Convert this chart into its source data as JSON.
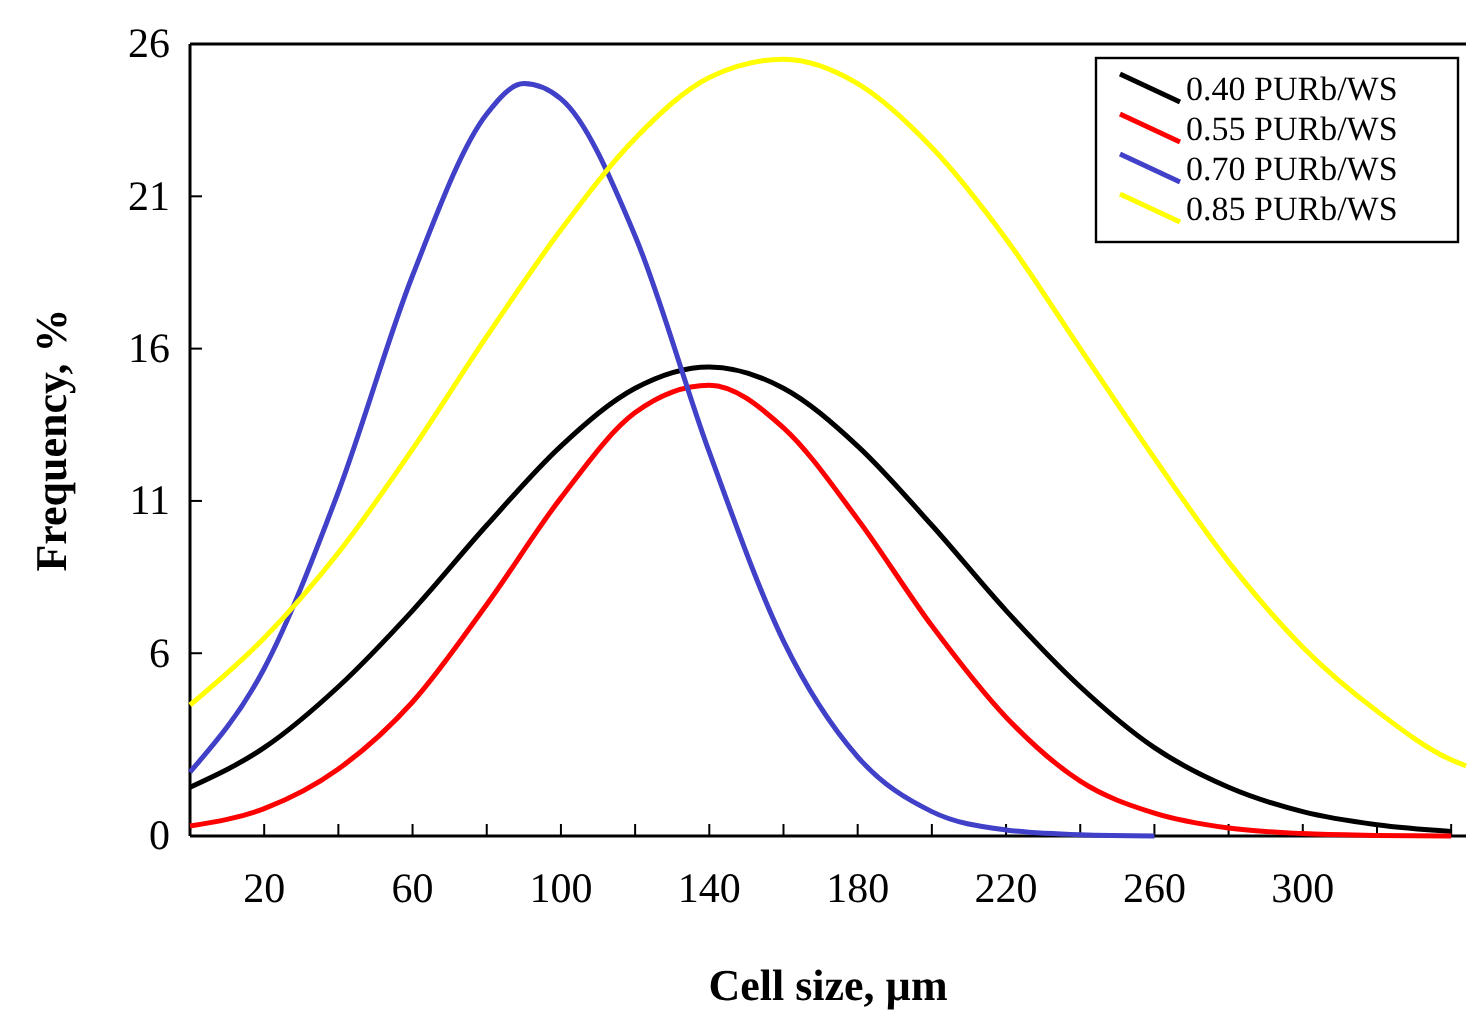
{
  "chart_data": {
    "type": "line",
    "xlabel": "Cell size, µm",
    "ylabel": "Frequency, %",
    "xlim": [
      0,
      344
    ],
    "ylim": [
      0,
      26
    ],
    "xticks": [
      {
        "value": 0,
        "label": null
      },
      20,
      {
        "value": 40,
        "label": null
      },
      60,
      {
        "value": 80,
        "label": null
      },
      100,
      {
        "value": 120,
        "label": null
      },
      140,
      {
        "value": 160,
        "label": null
      },
      180,
      {
        "value": 200,
        "label": null
      },
      220,
      {
        "value": 240,
        "label": null
      },
      260,
      {
        "value": 280,
        "label": null
      },
      300,
      {
        "value": 320,
        "label": null
      },
      {
        "value": 340,
        "label": null
      }
    ],
    "yticks": [
      0,
      6,
      11,
      16,
      21,
      26
    ],
    "grid": false,
    "legend": "top right",
    "marker": "none",
    "line_style": "solid",
    "series": [
      {
        "name": "0.40 PURb/WS",
        "color": "#000000",
        "x": [
          0,
          20,
          40,
          60,
          80,
          100,
          120,
          140,
          160,
          180,
          200,
          220,
          240,
          260,
          280,
          300,
          320,
          340
        ],
        "values": [
          1.6,
          2.9,
          4.9,
          7.4,
          10.2,
          12.8,
          14.7,
          15.4,
          14.7,
          12.8,
          10.2,
          7.4,
          4.9,
          2.9,
          1.6,
          0.8,
          0.37,
          0.15
        ]
      },
      {
        "name": "0.55 PURb/WS",
        "color": "#ff0000",
        "x": [
          0,
          20,
          40,
          60,
          80,
          100,
          120,
          140,
          160,
          180,
          200,
          220,
          240,
          260,
          280,
          300,
          320,
          340
        ],
        "values": [
          0.33,
          0.9,
          2.2,
          4.4,
          7.6,
          11.1,
          13.9,
          14.8,
          13.4,
          10.4,
          6.9,
          3.9,
          1.8,
          0.75,
          0.26,
          0.08,
          0.02,
          0
        ]
      },
      {
        "name": "0.70 PURb/WS",
        "color": "#4040c8",
        "x": [
          0,
          20,
          40,
          60,
          80,
          90,
          100,
          120,
          140,
          160,
          180,
          200,
          220,
          240,
          260
        ],
        "values": [
          2.1,
          5.5,
          11.3,
          18.4,
          23.7,
          24.7,
          24.2,
          19.7,
          12.6,
          6.4,
          2.6,
          0.8,
          0.2,
          0.04,
          0
        ]
      },
      {
        "name": "0.85 PURb/WS",
        "color": "#ffff00",
        "x": [
          0,
          20,
          40,
          60,
          80,
          100,
          120,
          140,
          160,
          180,
          200,
          220,
          240,
          260,
          280,
          300,
          320,
          340,
          344
        ],
        "values": [
          4.3,
          6.5,
          9.3,
          12.7,
          16.4,
          19.9,
          22.9,
          24.9,
          25.5,
          24.7,
          22.6,
          19.6,
          16.0,
          12.4,
          9.0,
          6.2,
          4.1,
          2.5,
          2.3
        ]
      }
    ]
  }
}
